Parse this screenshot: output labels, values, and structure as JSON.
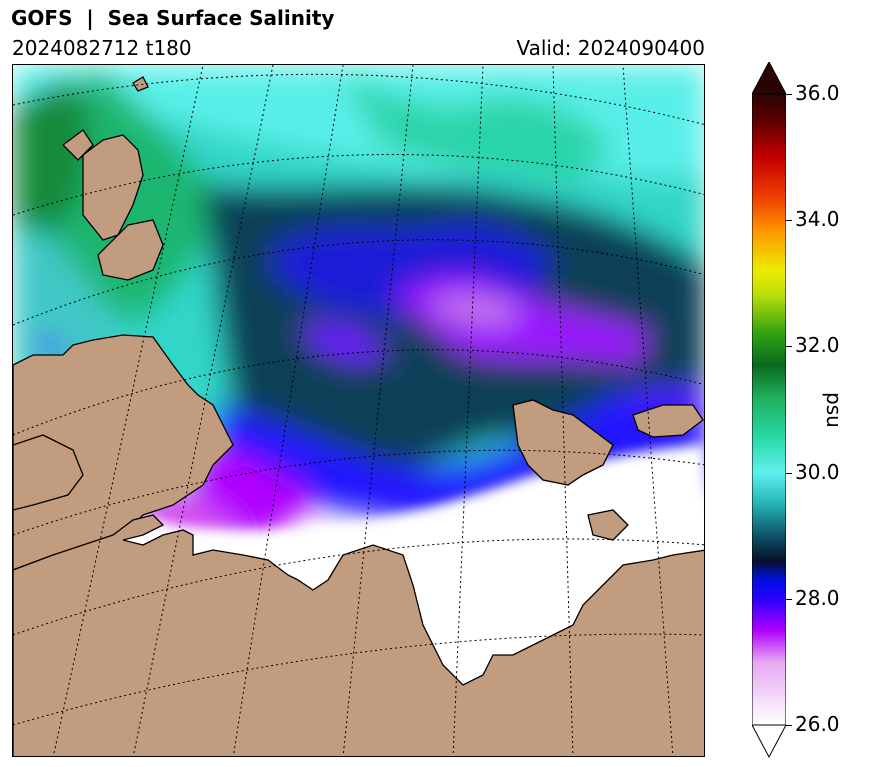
{
  "header": {
    "title": "GOFS  |  Sea Surface Salinity",
    "run": "2024082712 t180",
    "valid": "Valid: 2024090400"
  },
  "colorbar": {
    "unit": "psu",
    "ticks": [
      "26.0",
      "28.0",
      "30.0",
      "32.0",
      "34.0",
      "36.0"
    ],
    "min": 26.0,
    "max": 36.0,
    "extend": "both",
    "stops": [
      {
        "v": 26.0,
        "color": "#ffffff"
      },
      {
        "v": 27.0,
        "color": "#e6a8f2"
      },
      {
        "v": 27.5,
        "color": "#b000ff"
      },
      {
        "v": 28.0,
        "color": "#2a00ff"
      },
      {
        "v": 28.3,
        "color": "#0010e0"
      },
      {
        "v": 28.6,
        "color": "#08102a"
      },
      {
        "v": 29.0,
        "color": "#0e5268"
      },
      {
        "v": 29.5,
        "color": "#23b3b3"
      },
      {
        "v": 30.0,
        "color": "#5ef0ee"
      },
      {
        "v": 30.6,
        "color": "#27d6a0"
      },
      {
        "v": 31.2,
        "color": "#1fae5c"
      },
      {
        "v": 31.7,
        "color": "#0a6a1e"
      },
      {
        "v": 32.2,
        "color": "#2ea212"
      },
      {
        "v": 32.8,
        "color": "#b7dc0a"
      },
      {
        "v": 33.2,
        "color": "#ecec00"
      },
      {
        "v": 33.8,
        "color": "#ff9a00"
      },
      {
        "v": 34.4,
        "color": "#ec3a00"
      },
      {
        "v": 35.0,
        "color": "#c40000"
      },
      {
        "v": 35.6,
        "color": "#5a0000"
      },
      {
        "v": 36.0,
        "color": "#2a0404"
      }
    ],
    "over_color": "#2a0404",
    "under_color": "#ffffff"
  },
  "map": {
    "land_color": "#c19c7e",
    "ice_color": "#ffffff",
    "graticule": "dotted"
  }
}
